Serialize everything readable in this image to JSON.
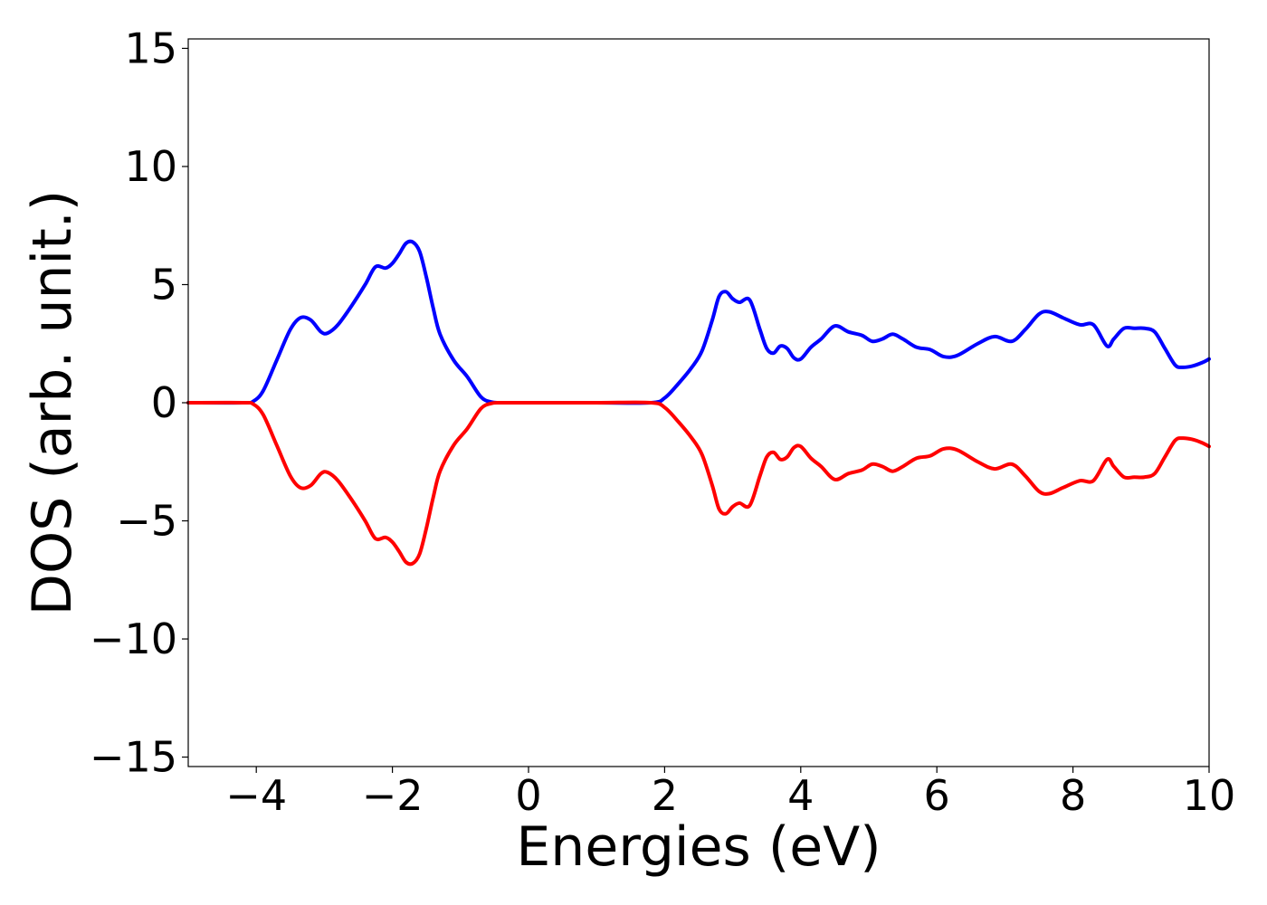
{
  "chart_data": {
    "type": "line",
    "title": "",
    "xlabel": "Energies (eV)",
    "ylabel": "DOS (arb. unit.)",
    "xlim": [
      -5,
      10
    ],
    "ylim": [
      -15.4,
      15.4
    ],
    "xticks": [
      -4,
      -2,
      0,
      2,
      4,
      6,
      8,
      10
    ],
    "xtick_labels": [
      "−4",
      "−2",
      "0",
      "2",
      "4",
      "6",
      "8",
      "10"
    ],
    "yticks": [
      -15,
      -10,
      -5,
      0,
      5,
      10,
      15
    ],
    "ytick_labels": [
      "−15",
      "−10",
      "−5",
      "0",
      "5",
      "10",
      "15"
    ],
    "grid": false,
    "legend": "none",
    "series": [
      {
        "color": "#0000ff",
        "x": [
          -5.0,
          -4.2,
          -4.05,
          -3.9,
          -3.7,
          -3.5,
          -3.35,
          -3.2,
          -3.05,
          -2.95,
          -2.8,
          -2.6,
          -2.4,
          -2.25,
          -2.1,
          -2.0,
          -1.9,
          -1.8,
          -1.7,
          -1.6,
          -1.5,
          -1.4,
          -1.3,
          -1.1,
          -0.9,
          -0.7,
          -0.55,
          -0.4,
          0.0,
          1.0,
          1.8,
          2.0,
          2.2,
          2.4,
          2.55,
          2.7,
          2.8,
          2.9,
          3.0,
          3.1,
          3.25,
          3.4,
          3.5,
          3.6,
          3.7,
          3.8,
          3.9,
          4.0,
          4.15,
          4.3,
          4.5,
          4.7,
          4.9,
          5.05,
          5.2,
          5.35,
          5.5,
          5.7,
          5.9,
          6.1,
          6.3,
          6.6,
          6.85,
          7.1,
          7.3,
          7.5,
          7.65,
          7.85,
          8.1,
          8.3,
          8.5,
          8.6,
          8.75,
          8.9,
          9.05,
          9.2,
          9.35,
          9.5,
          9.6,
          9.75,
          9.9,
          10.0
        ],
        "y": [
          0.0,
          0.0,
          0.05,
          0.5,
          1.8,
          3.1,
          3.6,
          3.5,
          3.0,
          2.95,
          3.3,
          4.1,
          5.0,
          5.75,
          5.7,
          5.9,
          6.3,
          6.75,
          6.8,
          6.4,
          5.3,
          4.0,
          2.9,
          1.8,
          1.1,
          0.25,
          0.03,
          0.0,
          0.0,
          0.0,
          0.0,
          0.2,
          0.8,
          1.5,
          2.2,
          3.5,
          4.5,
          4.7,
          4.4,
          4.25,
          4.35,
          3.1,
          2.3,
          2.1,
          2.4,
          2.3,
          1.9,
          1.85,
          2.35,
          2.7,
          3.25,
          3.0,
          2.85,
          2.6,
          2.7,
          2.9,
          2.7,
          2.35,
          2.25,
          1.95,
          2.0,
          2.5,
          2.8,
          2.6,
          3.1,
          3.75,
          3.85,
          3.6,
          3.3,
          3.3,
          2.4,
          2.7,
          3.15,
          3.15,
          3.15,
          3.0,
          2.3,
          1.6,
          1.5,
          1.55,
          1.7,
          1.85
        ]
      },
      {
        "color": "#ff0000",
        "x": [
          -5.0,
          -4.2,
          -4.05,
          -3.9,
          -3.7,
          -3.5,
          -3.35,
          -3.2,
          -3.05,
          -2.95,
          -2.8,
          -2.6,
          -2.4,
          -2.25,
          -2.1,
          -2.0,
          -1.9,
          -1.8,
          -1.7,
          -1.6,
          -1.5,
          -1.4,
          -1.3,
          -1.1,
          -0.9,
          -0.7,
          -0.55,
          -0.4,
          0.0,
          1.0,
          1.8,
          2.0,
          2.2,
          2.4,
          2.55,
          2.7,
          2.8,
          2.9,
          3.0,
          3.1,
          3.25,
          3.4,
          3.5,
          3.6,
          3.7,
          3.8,
          3.9,
          4.0,
          4.15,
          4.3,
          4.5,
          4.7,
          4.9,
          5.05,
          5.2,
          5.35,
          5.5,
          5.7,
          5.9,
          6.1,
          6.3,
          6.6,
          6.85,
          7.1,
          7.3,
          7.5,
          7.65,
          7.85,
          8.1,
          8.3,
          8.5,
          8.6,
          8.75,
          8.9,
          9.05,
          9.2,
          9.35,
          9.5,
          9.6,
          9.75,
          9.9,
          10.0
        ],
        "y": [
          0.0,
          0.0,
          -0.05,
          -0.5,
          -1.8,
          -3.1,
          -3.6,
          -3.5,
          -3.0,
          -2.95,
          -3.3,
          -4.1,
          -5.0,
          -5.75,
          -5.7,
          -5.9,
          -6.3,
          -6.75,
          -6.8,
          -6.4,
          -5.3,
          -4.0,
          -2.9,
          -1.8,
          -1.1,
          -0.25,
          -0.03,
          0.0,
          0.0,
          0.0,
          0.0,
          -0.2,
          -0.8,
          -1.5,
          -2.2,
          -3.5,
          -4.5,
          -4.7,
          -4.4,
          -4.25,
          -4.35,
          -3.1,
          -2.3,
          -2.1,
          -2.4,
          -2.3,
          -1.9,
          -1.85,
          -2.35,
          -2.7,
          -3.25,
          -3.0,
          -2.85,
          -2.6,
          -2.7,
          -2.9,
          -2.7,
          -2.35,
          -2.25,
          -1.95,
          -2.0,
          -2.5,
          -2.8,
          -2.6,
          -3.1,
          -3.75,
          -3.85,
          -3.6,
          -3.3,
          -3.3,
          -2.4,
          -2.7,
          -3.15,
          -3.15,
          -3.15,
          -3.0,
          -2.3,
          -1.6,
          -1.5,
          -1.55,
          -1.7,
          -1.85
        ]
      }
    ]
  }
}
